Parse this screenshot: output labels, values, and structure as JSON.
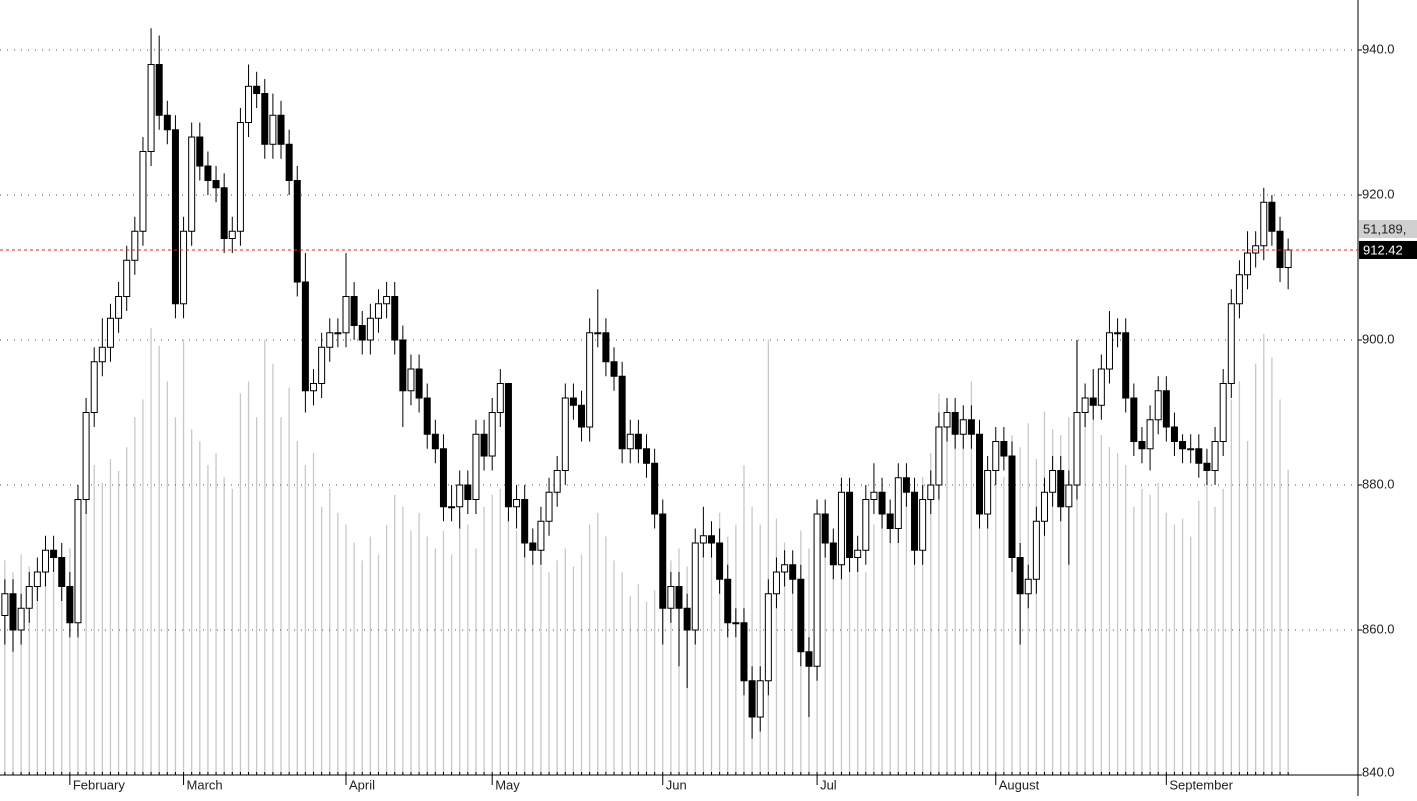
{
  "chart_data": {
    "type": "candlestick",
    "open": [
      862,
      865,
      860,
      863,
      866,
      868,
      871,
      870,
      866,
      861,
      878,
      890,
      897,
      899,
      903,
      906,
      911,
      915,
      926,
      938,
      931,
      929,
      905,
      915,
      928,
      924,
      922,
      921,
      914,
      915,
      930,
      935,
      934,
      927,
      931,
      927,
      922,
      908,
      893,
      894,
      899,
      901,
      901,
      906,
      902,
      900,
      903,
      905,
      906,
      900,
      893,
      896,
      892,
      887,
      885,
      877,
      877,
      880,
      878,
      887,
      884,
      890,
      894,
      877,
      878,
      872,
      871,
      875,
      879,
      882,
      892,
      891,
      888,
      901,
      901,
      897,
      895,
      885,
      887,
      885,
      883,
      876,
      863,
      866,
      863,
      860,
      872,
      873,
      872,
      867,
      861,
      861,
      853,
      848,
      853,
      865,
      868,
      869,
      867,
      857,
      855,
      876,
      872,
      869,
      879,
      870,
      871,
      878,
      879,
      876,
      874,
      881,
      879,
      871,
      878,
      880,
      888,
      890,
      887,
      889,
      887,
      876,
      882,
      886,
      884,
      870,
      865,
      867,
      875,
      879,
      882,
      877,
      880,
      890,
      892,
      891,
      896,
      901,
      901,
      892,
      886,
      885,
      889,
      893,
      888,
      886,
      885,
      885,
      883,
      882,
      886,
      894,
      905,
      909,
      912,
      913,
      919,
      915,
      910
    ],
    "high": [
      867,
      867,
      865,
      868,
      870,
      873,
      873,
      872,
      868,
      880,
      892,
      899,
      903,
      905,
      908,
      913,
      917,
      928,
      943,
      942,
      933,
      931,
      917,
      930,
      930,
      926,
      924,
      923,
      917,
      932,
      938,
      937,
      936,
      934,
      933,
      929,
      924,
      912,
      896,
      901,
      903,
      903,
      912,
      908,
      904,
      905,
      907,
      908,
      908,
      902,
      898,
      898,
      894,
      889,
      887,
      880,
      882,
      882,
      889,
      889,
      892,
      896,
      894,
      880,
      880,
      874,
      877,
      881,
      884,
      894,
      894,
      893,
      903,
      907,
      903,
      899,
      897,
      889,
      889,
      887,
      885,
      878,
      868,
      868,
      865,
      874,
      877,
      875,
      874,
      869,
      863,
      863,
      855,
      855,
      867,
      870,
      871,
      871,
      869,
      859,
      878,
      878,
      874,
      881,
      881,
      873,
      880,
      883,
      881,
      878,
      883,
      883,
      881,
      880,
      882,
      890,
      892,
      892,
      891,
      891,
      889,
      884,
      888,
      888,
      886,
      872,
      869,
      877,
      881,
      884,
      884,
      882,
      900,
      894,
      896,
      898,
      904,
      903,
      903,
      894,
      888,
      891,
      895,
      895,
      890,
      887,
      887,
      887,
      885,
      888,
      896,
      907,
      911,
      915,
      915,
      921,
      920,
      917,
      914
    ],
    "low": [
      858,
      857,
      858,
      861,
      864,
      866,
      868,
      864,
      859,
      859,
      876,
      888,
      895,
      897,
      901,
      904,
      909,
      913,
      924,
      929,
      927,
      903,
      903,
      913,
      922,
      920,
      919,
      912,
      912,
      913,
      928,
      932,
      925,
      925,
      925,
      920,
      906,
      890,
      891,
      892,
      897,
      899,
      899,
      900,
      898,
      898,
      901,
      903,
      898,
      888,
      891,
      890,
      885,
      883,
      875,
      875,
      874,
      876,
      876,
      882,
      882,
      888,
      875,
      874,
      870,
      869,
      869,
      873,
      877,
      880,
      889,
      886,
      886,
      899,
      895,
      893,
      883,
      883,
      883,
      881,
      874,
      858,
      861,
      855,
      852,
      858,
      870,
      870,
      865,
      859,
      859,
      851,
      845,
      846,
      851,
      863,
      866,
      865,
      855,
      848,
      853,
      870,
      867,
      867,
      868,
      868,
      869,
      876,
      874,
      872,
      872,
      877,
      869,
      869,
      876,
      878,
      886,
      885,
      885,
      885,
      874,
      874,
      880,
      882,
      868,
      858,
      863,
      865,
      873,
      877,
      875,
      869,
      878,
      888,
      889,
      889,
      894,
      899,
      890,
      884,
      883,
      882,
      887,
      886,
      884,
      883,
      883,
      881,
      880,
      880,
      884,
      892,
      903,
      907,
      910,
      911,
      913,
      908,
      907
    ],
    "close": [
      865,
      860,
      863,
      866,
      868,
      871,
      870,
      866,
      861,
      878,
      890,
      897,
      899,
      903,
      906,
      911,
      915,
      926,
      938,
      931,
      929,
      905,
      915,
      928,
      924,
      922,
      921,
      914,
      915,
      930,
      935,
      934,
      927,
      931,
      927,
      922,
      908,
      893,
      894,
      899,
      901,
      901,
      906,
      902,
      900,
      903,
      905,
      906,
      900,
      893,
      896,
      892,
      887,
      885,
      877,
      877,
      880,
      878,
      887,
      884,
      890,
      894,
      877,
      878,
      872,
      871,
      875,
      879,
      882,
      892,
      891,
      888,
      901,
      901,
      897,
      895,
      885,
      887,
      885,
      883,
      876,
      863,
      866,
      863,
      860,
      872,
      873,
      872,
      867,
      861,
      861,
      853,
      848,
      853,
      865,
      868,
      869,
      867,
      857,
      855,
      876,
      872,
      869,
      879,
      870,
      871,
      878,
      879,
      876,
      874,
      881,
      879,
      871,
      878,
      880,
      888,
      890,
      887,
      889,
      887,
      876,
      882,
      886,
      884,
      870,
      865,
      867,
      875,
      879,
      882,
      877,
      880,
      890,
      892,
      891,
      896,
      901,
      901,
      892,
      886,
      885,
      889,
      893,
      888,
      886,
      885,
      885,
      883,
      882,
      886,
      894,
      905,
      909,
      912,
      913,
      919,
      915,
      910,
      912.42
    ],
    "volume": [
      36000000,
      34000000,
      37000000,
      35000000,
      33000000,
      36000000,
      34000000,
      31000000,
      38000000,
      47000000,
      50000000,
      52000000,
      49000000,
      53000000,
      51000000,
      55000000,
      60000000,
      63000000,
      75000000,
      72000000,
      66000000,
      60000000,
      73000000,
      58000000,
      56000000,
      52000000,
      54000000,
      50000000,
      48000000,
      64000000,
      66000000,
      60000000,
      73000000,
      69000000,
      60000000,
      65000000,
      56000000,
      52000000,
      54000000,
      45000000,
      48000000,
      44000000,
      42000000,
      39000000,
      36000000,
      40000000,
      37000000,
      42000000,
      47000000,
      45000000,
      41000000,
      44000000,
      40000000,
      38000000,
      41000000,
      37000000,
      44000000,
      42000000,
      38000000,
      45000000,
      47000000,
      48000000,
      44000000,
      41000000,
      39000000,
      36000000,
      38000000,
      34000000,
      36000000,
      38000000,
      35000000,
      37000000,
      42000000,
      44000000,
      40000000,
      36000000,
      34000000,
      30000000,
      32000000,
      29000000,
      31000000,
      33000000,
      36000000,
      38000000,
      35000000,
      39000000,
      41000000,
      38000000,
      44000000,
      40000000,
      42000000,
      52000000,
      45000000,
      42000000,
      73000000,
      43000000,
      39000000,
      35000000,
      41000000,
      38000000,
      45000000,
      43000000,
      40000000,
      37000000,
      36000000,
      38000000,
      34000000,
      42000000,
      44000000,
      39000000,
      45000000,
      46000000,
      42000000,
      50000000,
      54000000,
      64000000,
      62000000,
      58000000,
      60000000,
      66000000,
      55000000,
      48000000,
      52000000,
      50000000,
      57000000,
      55000000,
      59000000,
      53000000,
      61000000,
      58000000,
      57000000,
      60000000,
      73000000,
      63000000,
      67000000,
      57000000,
      55000000,
      54000000,
      52000000,
      45000000,
      48000000,
      47000000,
      49000000,
      44000000,
      42000000,
      43000000,
      40000000,
      46000000,
      49000000,
      45000000,
      48000000,
      63000000,
      66000000,
      56000000,
      69000000,
      74000000,
      70000000,
      63000000,
      51189000
    ],
    "last_volume_label": "51,189,",
    "ylim": [
      840,
      946.9
    ],
    "yticks": [
      {
        "value": 840,
        "label": "840.0"
      },
      {
        "value": 860,
        "label": "860.0"
      },
      {
        "value": 880,
        "label": "880.0"
      },
      {
        "value": 900,
        "label": "900.0"
      },
      {
        "value": 920,
        "label": "920.0"
      },
      {
        "value": 940,
        "label": "940.0"
      }
    ],
    "xlim": [
      -0.6,
      166.6
    ],
    "xticks": [
      {
        "value": 8,
        "label": "February"
      },
      {
        "value": 22,
        "label": "March"
      },
      {
        "value": 42,
        "label": "April"
      },
      {
        "value": 60,
        "label": "May"
      },
      {
        "value": 81,
        "label": "Jun"
      },
      {
        "value": 100,
        "label": "Jul"
      },
      {
        "value": 122,
        "label": "August"
      },
      {
        "value": 143,
        "label": "September"
      }
    ],
    "vlim": [
      0,
      130000000
    ],
    "grid": true,
    "up_color": "#ffffff",
    "down_color": "#000000",
    "volume_color": "#c8c8c8",
    "last_line_color": "#e02020"
  }
}
